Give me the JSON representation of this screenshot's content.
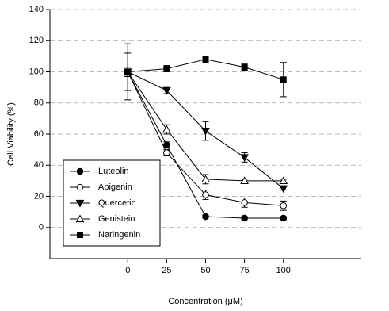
{
  "chart_data": {
    "type": "line",
    "x_label": "Concentration (μM)",
    "y_label": "Cell Viability (%)",
    "x": [
      0,
      25,
      50,
      75,
      100
    ],
    "xlim": [
      -50,
      150
    ],
    "xticks": [
      0,
      25,
      50,
      75,
      100
    ],
    "ylim": [
      -20,
      140
    ],
    "yticks": [
      0,
      20,
      40,
      60,
      80,
      100,
      120,
      140
    ],
    "grid": true,
    "legend": "lower left",
    "series": [
      {
        "name": "Luteolin",
        "color": "#000000",
        "marker": "circle-filled",
        "values": [
          100,
          53,
          7,
          6,
          6
        ],
        "errors": [
          3,
          2,
          1,
          1,
          1
        ]
      },
      {
        "name": "Apigenin",
        "color": "#000000",
        "marker": "circle-open",
        "values": [
          100,
          48,
          21,
          16,
          14
        ],
        "errors": [
          3,
          2,
          3,
          3,
          3
        ]
      },
      {
        "name": "Quercetin",
        "color": "#000000",
        "marker": "triangle-down-filled",
        "values": [
          100,
          88,
          62,
          45,
          25
        ],
        "errors": [
          3,
          2,
          6,
          3,
          1
        ]
      },
      {
        "name": "Genistein",
        "color": "#000000",
        "marker": "triangle-up-open",
        "values": [
          100,
          63,
          31,
          30,
          30
        ],
        "errors": [
          12,
          3,
          3,
          1,
          1
        ]
      },
      {
        "name": "Naringenin",
        "color": "#000000",
        "marker": "square-filled",
        "values": [
          100,
          102,
          108,
          103,
          95
        ],
        "errors": [
          18,
          2,
          2,
          2,
          11
        ]
      }
    ]
  }
}
